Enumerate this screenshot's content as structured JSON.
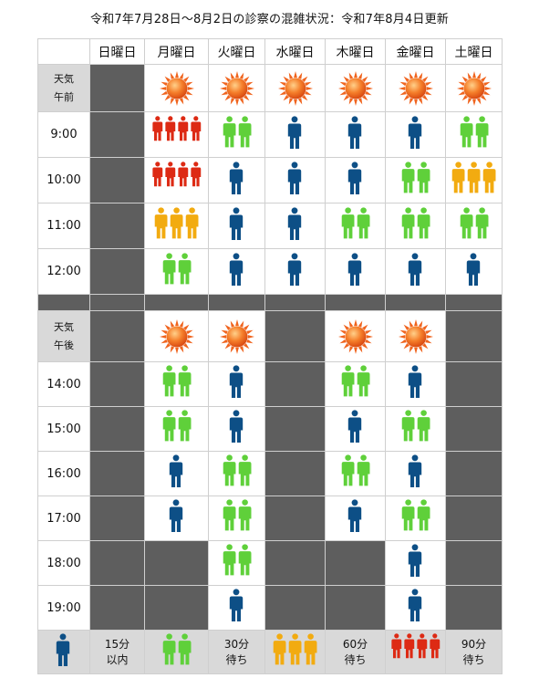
{
  "title": "令和7年7月28日〜8月2日の診察の混雑状況：令和7年8月4日更新",
  "days": [
    "日曜日",
    "月曜日",
    "火曜日",
    "水曜日",
    "木曜日",
    "金曜日",
    "土曜日"
  ],
  "weather_label_am": [
    "天気",
    "午前"
  ],
  "weather_label_pm": [
    "天気",
    "午後"
  ],
  "weather_am": [
    "closed",
    "sun",
    "sun",
    "sun",
    "sun",
    "sun",
    "sun"
  ],
  "weather_pm": [
    "closed",
    "sun",
    "sun",
    "closed",
    "sun",
    "sun",
    "closed"
  ],
  "level_colors": {
    "1": "#0d4f86",
    "2": "#5fd03a",
    "3": "#f2ab10",
    "4": "#dd2a14"
  },
  "am_slots": [
    {
      "time": "9:00",
      "levels": [
        0,
        4,
        2,
        1,
        1,
        1,
        2
      ]
    },
    {
      "time": "10:00",
      "levels": [
        0,
        4,
        1,
        1,
        1,
        2,
        3
      ]
    },
    {
      "time": "11:00",
      "levels": [
        0,
        3,
        1,
        1,
        2,
        2,
        2
      ]
    },
    {
      "time": "12:00",
      "levels": [
        0,
        2,
        1,
        1,
        1,
        1,
        1
      ]
    }
  ],
  "pm_slots": [
    {
      "time": "14:00",
      "levels": [
        0,
        2,
        1,
        0,
        2,
        1,
        0
      ]
    },
    {
      "time": "15:00",
      "levels": [
        0,
        2,
        1,
        0,
        1,
        2,
        0
      ]
    },
    {
      "time": "16:00",
      "levels": [
        0,
        1,
        2,
        0,
        2,
        1,
        0
      ]
    },
    {
      "time": "17:00",
      "levels": [
        0,
        1,
        2,
        0,
        1,
        2,
        0
      ]
    },
    {
      "time": "18:00",
      "levels": [
        0,
        0,
        2,
        0,
        0,
        1,
        0
      ]
    },
    {
      "time": "19:00",
      "levels": [
        0,
        0,
        1,
        0,
        0,
        1,
        0
      ]
    }
  ],
  "legend": [
    {
      "level": 1,
      "lines": [
        "15分",
        "以内"
      ]
    },
    {
      "level": 2,
      "lines": [
        "30分",
        "待ち"
      ]
    },
    {
      "level": 3,
      "lines": [
        "60分",
        "待ち"
      ]
    },
    {
      "level": 4,
      "lines": [
        "90分",
        "待ち"
      ]
    }
  ]
}
